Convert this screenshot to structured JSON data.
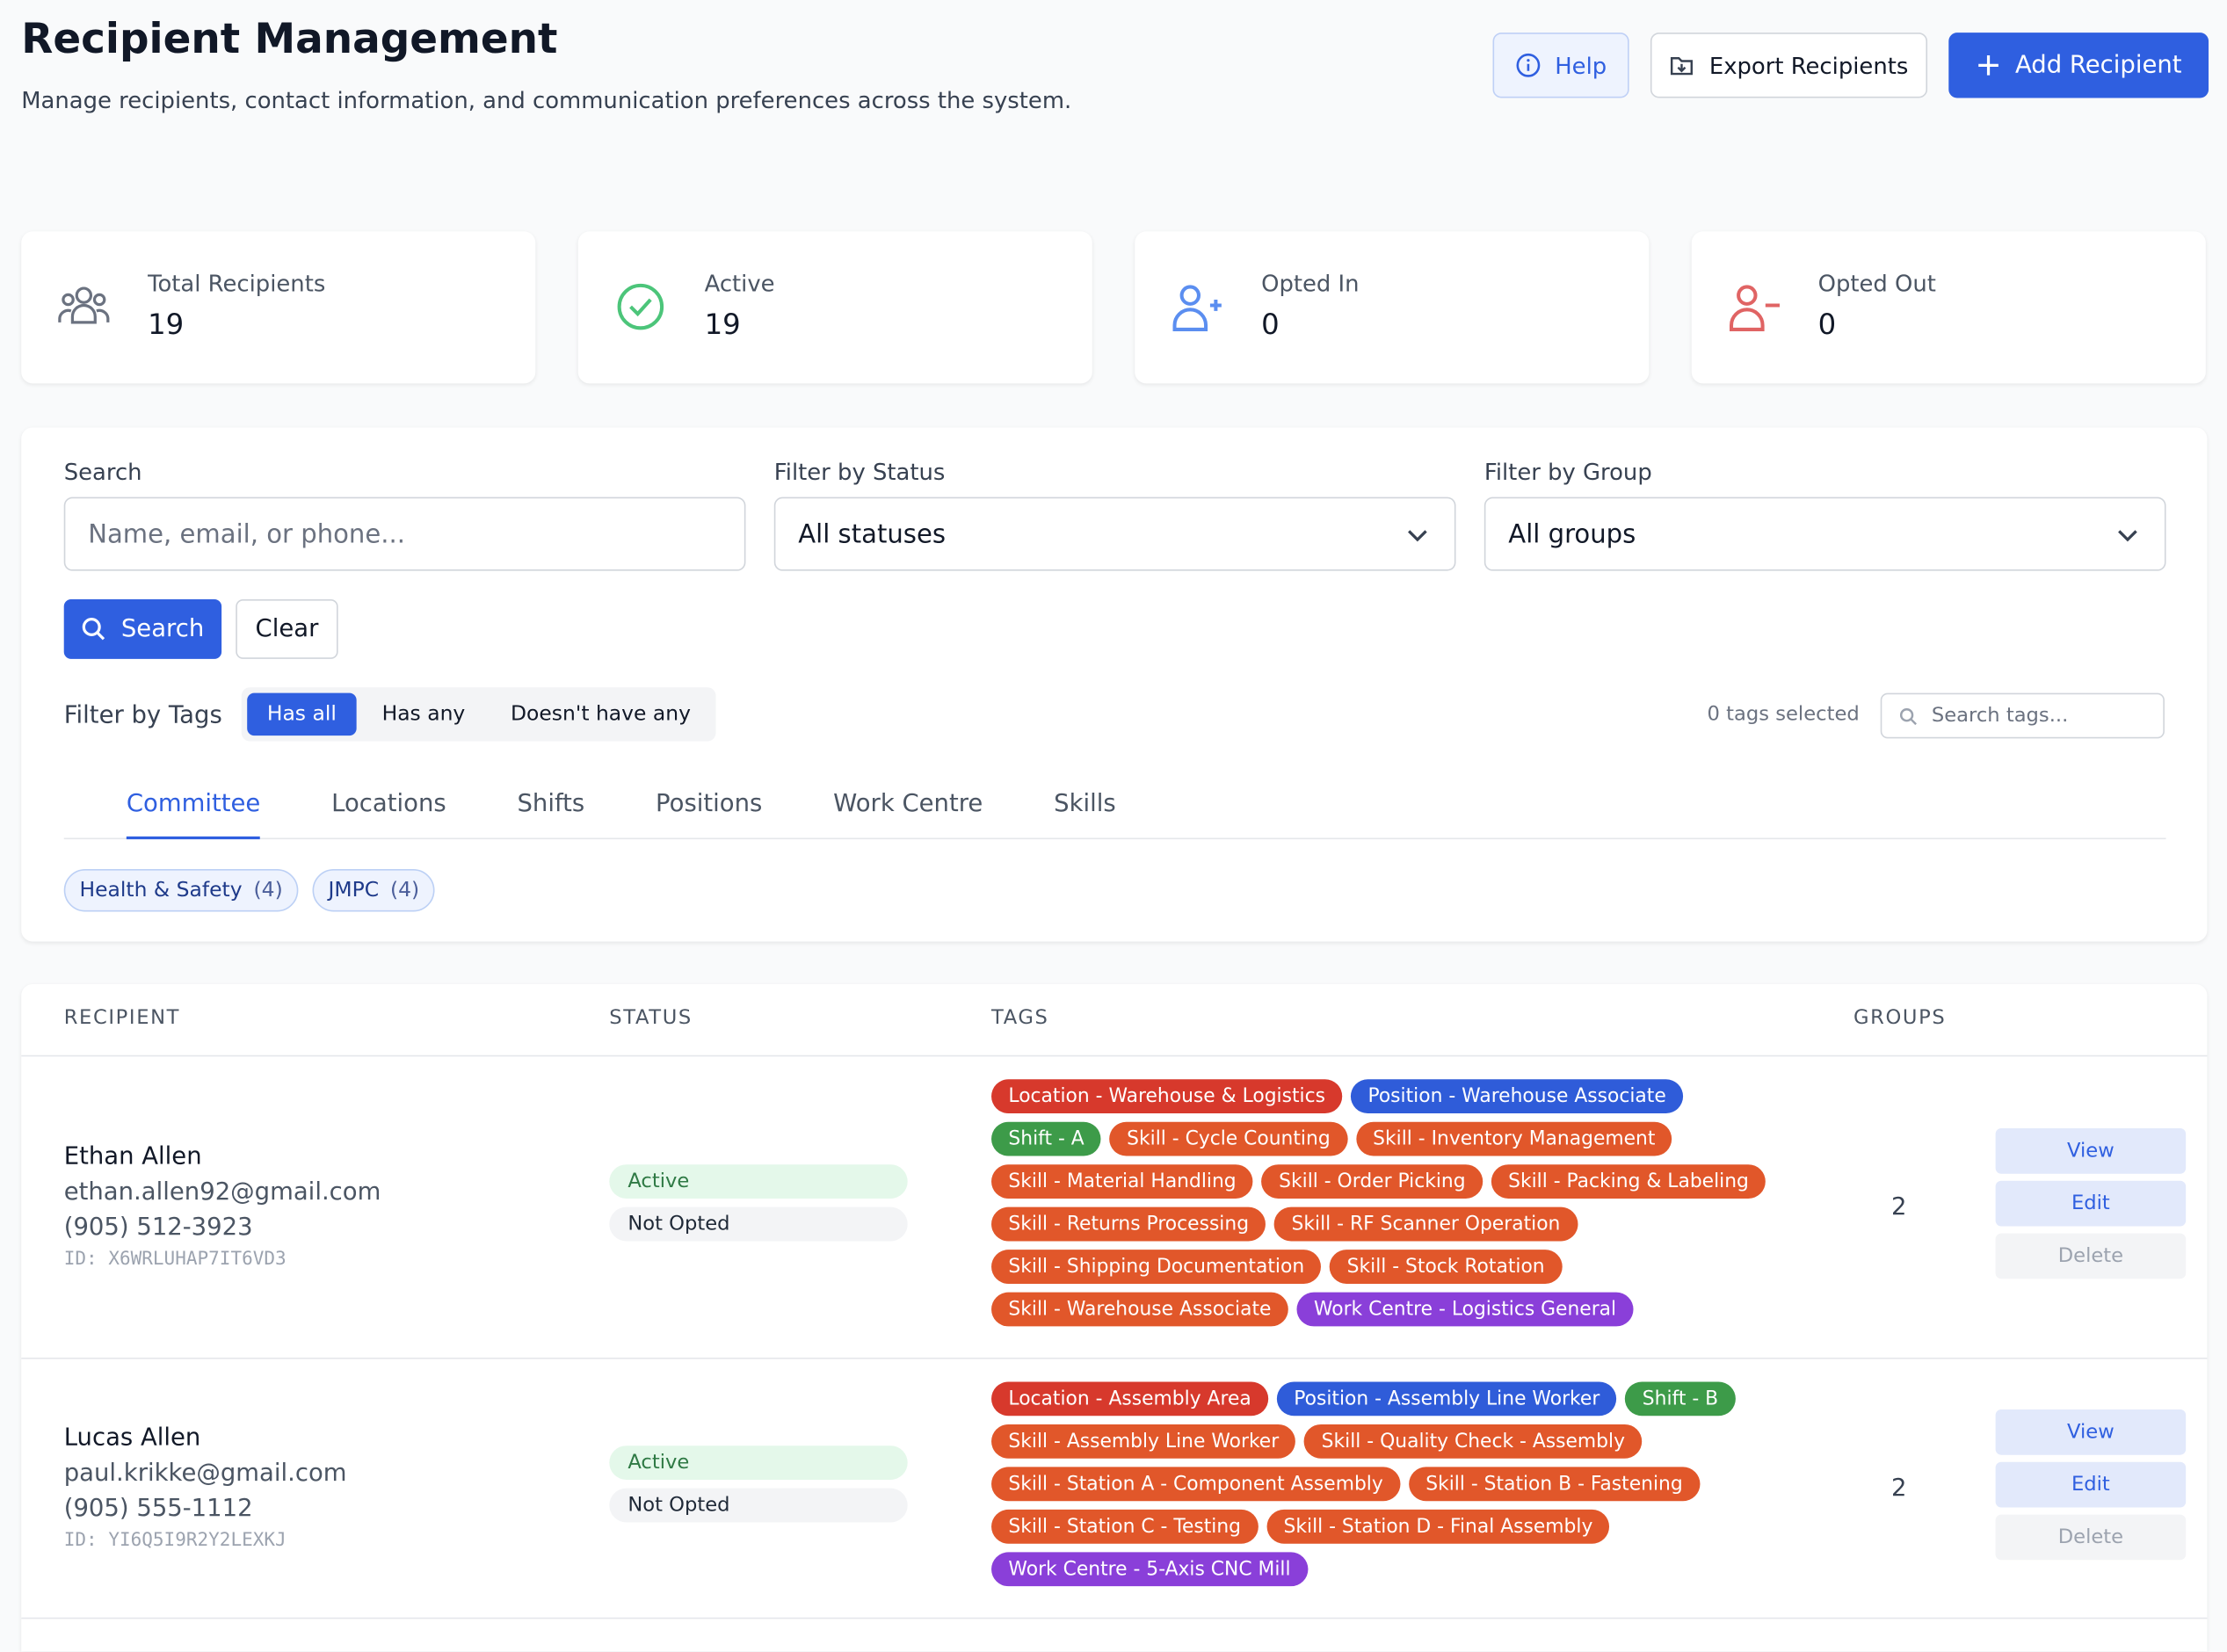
{
  "header": {
    "title": "Recipient Management",
    "subtitle": "Manage recipients, contact information, and communication preferences across the system.",
    "buttons": [
      "Help",
      "Export Recipients",
      "Add Recipient"
    ]
  },
  "stats": [
    {
      "label": "Total Recipients",
      "value": "19"
    },
    {
      "label": "Active",
      "value": "19"
    },
    {
      "label": "Opted In",
      "value": "0"
    },
    {
      "label": "Opted Out",
      "value": "0"
    }
  ],
  "filters": {
    "search_label": "Search",
    "search_placeholder": "Name, email, or phone...",
    "status_label": "Filter by Status",
    "status_value": "All statuses",
    "group_label": "Filter by Group",
    "group_value": "All groups",
    "search_button": "Search",
    "clear_button": "Clear",
    "tags_label": "Filter by Tags",
    "tag_modes": [
      "Has all",
      "Has any",
      "Doesn't have any"
    ],
    "tags_selected": "0 tags selected",
    "tag_search_placeholder": "Search tags...",
    "tabs": [
      "Committee",
      "Locations",
      "Shifts",
      "Positions",
      "Work Centre",
      "Skills"
    ],
    "chips": [
      {
        "name": "Health & Safety",
        "count": "(4)"
      },
      {
        "name": "JMPC",
        "count": "(4)"
      }
    ]
  },
  "table": {
    "headers": [
      "RECIPIENT",
      "STATUS",
      "TAGS",
      "GROUPS"
    ],
    "actions": [
      "View",
      "Edit",
      "Delete"
    ],
    "rows": [
      {
        "name": "Ethan Allen",
        "email": "ethan.allen92@gmail.com",
        "phone": "(905) 512-3923",
        "id": "ID: X6WRLUHAP7IT6VD3",
        "status": "Active",
        "opt": "Not Opted",
        "groups": "2",
        "tags": [
          {
            "text": "Location - Warehouse & Logistics",
            "color": "#d7392c"
          },
          {
            "text": "Position - Warehouse Associate",
            "color": "#2f5cd9"
          },
          {
            "text": "Shift - A",
            "color": "#3d9b49"
          },
          {
            "text": "Skill - Cycle Counting",
            "color": "#e1572a"
          },
          {
            "text": "Skill - Inventory Management",
            "color": "#e1572a"
          },
          {
            "text": "Skill - Material Handling",
            "color": "#e1572a"
          },
          {
            "text": "Skill - Order Picking",
            "color": "#e1572a"
          },
          {
            "text": "Skill - Packing & Labeling",
            "color": "#e1572a"
          },
          {
            "text": "Skill - Returns Processing",
            "color": "#e1572a"
          },
          {
            "text": "Skill - RF Scanner Operation",
            "color": "#e1572a"
          },
          {
            "text": "Skill - Shipping Documentation",
            "color": "#e1572a"
          },
          {
            "text": "Skill - Stock Rotation",
            "color": "#e1572a"
          },
          {
            "text": "Skill - Warehouse Associate",
            "color": "#e1572a"
          },
          {
            "text": "Work Centre - Logistics General",
            "color": "#8a3fd9"
          }
        ]
      },
      {
        "name": "Lucas Allen",
        "email": "paul.krikke@gmail.com",
        "phone": "(905) 555-1112",
        "id": "ID: YI6Q5I9R2Y2LEXKJ",
        "status": "Active",
        "opt": "Not Opted",
        "groups": "2",
        "tags": [
          {
            "text": "Location - Assembly Area",
            "color": "#d7392c"
          },
          {
            "text": "Position - Assembly Line Worker",
            "color": "#2f5cd9"
          },
          {
            "text": "Shift - B",
            "color": "#3d9b49"
          },
          {
            "text": "Skill - Assembly Line Worker",
            "color": "#e1572a"
          },
          {
            "text": "Skill - Quality Check - Assembly",
            "color": "#e1572a"
          },
          {
            "text": "Skill - Station A - Component Assembly",
            "color": "#e1572a"
          },
          {
            "text": "Skill - Station B - Fastening",
            "color": "#e1572a"
          },
          {
            "text": "Skill - Station C - Testing",
            "color": "#e1572a"
          },
          {
            "text": "Skill - Station D - Final Assembly",
            "color": "#e1572a"
          },
          {
            "text": "Work Centre - 5-Axis CNC Mill",
            "color": "#8a3fd9"
          }
        ]
      }
    ]
  }
}
